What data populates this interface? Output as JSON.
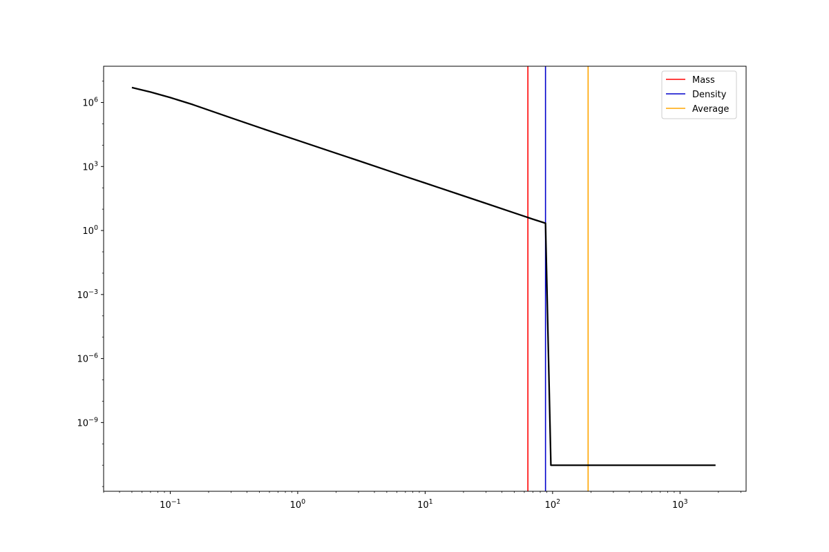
{
  "chart_data": {
    "type": "line",
    "title": "",
    "xlabel": "",
    "ylabel": "",
    "xscale": "log",
    "yscale": "log",
    "xlim": [
      0.03,
      3300
    ],
    "ylim": [
      6e-13,
      50000000.0
    ],
    "grid": false,
    "legend_position": "top-right",
    "x_major_ticks": [
      {
        "value": 0.1,
        "label": "10",
        "exponent": "−1"
      },
      {
        "value": 1,
        "label": "10",
        "exponent": "0"
      },
      {
        "value": 10,
        "label": "10",
        "exponent": "1"
      },
      {
        "value": 100,
        "label": "10",
        "exponent": "2"
      },
      {
        "value": 1000,
        "label": "10",
        "exponent": "3"
      }
    ],
    "y_major_ticks": [
      {
        "value": 1000000.0,
        "label": "10",
        "exponent": "6"
      },
      {
        "value": 1000.0,
        "label": "10",
        "exponent": "3"
      },
      {
        "value": 1,
        "label": "10",
        "exponent": "0"
      },
      {
        "value": 0.001,
        "label": "10",
        "exponent": "−3"
      },
      {
        "value": 1e-06,
        "label": "10",
        "exponent": "−6"
      },
      {
        "value": 1e-09,
        "label": "10",
        "exponent": "−9"
      }
    ],
    "curve": {
      "color": "#000000",
      "x": [
        0.05,
        0.07,
        0.1,
        0.15,
        0.2,
        0.3,
        0.5,
        0.7,
        1,
        2,
        3,
        5,
        7,
        10,
        20,
        30,
        50,
        70,
        88,
        97,
        200,
        500,
        1000,
        1900
      ],
      "y": [
        5000000,
        3100000,
        1700000,
        800000,
        440000,
        190000,
        67000,
        34000,
        16800,
        4200,
        1870,
        670,
        340,
        168,
        42,
        18.7,
        6.7,
        3.4,
        2.2,
        1e-11,
        1e-11,
        1e-11,
        1e-11,
        1e-11
      ]
    },
    "vlines": [
      {
        "name": "Mass",
        "x": 64,
        "color": "#ff0000"
      },
      {
        "name": "Density",
        "x": 88,
        "color": "#0000cc"
      },
      {
        "name": "Average",
        "x": 190,
        "color": "#ffa500"
      }
    ]
  }
}
